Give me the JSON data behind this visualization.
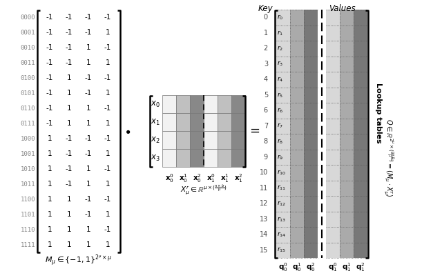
{
  "bg_color": "#ffffff",
  "matrix_M": [
    [
      -1,
      -1,
      -1,
      -1
    ],
    [
      -1,
      -1,
      -1,
      1
    ],
    [
      -1,
      -1,
      1,
      -1
    ],
    [
      -1,
      -1,
      1,
      1
    ],
    [
      -1,
      1,
      -1,
      -1
    ],
    [
      -1,
      1,
      -1,
      1
    ],
    [
      -1,
      1,
      1,
      -1
    ],
    [
      -1,
      1,
      1,
      1
    ],
    [
      1,
      -1,
      -1,
      -1
    ],
    [
      1,
      -1,
      -1,
      1
    ],
    [
      1,
      -1,
      1,
      -1
    ],
    [
      1,
      -1,
      1,
      1
    ],
    [
      1,
      1,
      -1,
      -1
    ],
    [
      1,
      1,
      -1,
      1
    ],
    [
      1,
      1,
      1,
      -1
    ],
    [
      1,
      1,
      1,
      1
    ]
  ],
  "row_labels": [
    "0000",
    "0001",
    "0010",
    "0011",
    "0100",
    "0101",
    "0110",
    "0111",
    "1000",
    "1001",
    "1010",
    "1011",
    "1100",
    "1101",
    "1110",
    "1111"
  ],
  "X_rows": [
    "$x_0$",
    "$x_1$",
    "$x_2$",
    "$x_3$"
  ],
  "col_labels_X": [
    "$\\mathbf{x}_0^0$",
    "$\\mathbf{x}_0^1$",
    "$\\mathbf{x}_0^2$",
    "$\\mathbf{x}_1^0$",
    "$\\mathbf{x}_1^1$",
    "$\\mathbf{x}_1^2$"
  ],
  "lut_row_labels": [
    "$r_0$",
    "$r_1$",
    "$r_2$",
    "$r_3$",
    "$r_4$",
    "$r_5$",
    "$r_6$",
    "$r_7$",
    "$r_8$",
    "$r_9$",
    "$r_{10}$",
    "$r_{11}$",
    "$r_{12}$",
    "$r_{13}$",
    "$r_{14}$",
    "$r_{15}$"
  ],
  "lut_col_labels_bot": [
    "$\\mathbf{q}_0^0$",
    "$\\mathbf{q}_0^1$",
    "$\\mathbf{q}_0^2$",
    "$\\mathbf{q}_1^0$",
    "$\\mathbf{q}_1^1$",
    "$\\mathbf{q}_1^2$"
  ],
  "x_col_colors": [
    "#f2f2f2",
    "#c0c0c0",
    "#888888",
    "#f2f2f2",
    "#c0c0c0",
    "#888888"
  ],
  "lut_col_colors": [
    "#d8d8d8",
    "#aaaaaa",
    "#787878",
    "#d8d8d8",
    "#aaaaaa",
    "#787878"
  ]
}
